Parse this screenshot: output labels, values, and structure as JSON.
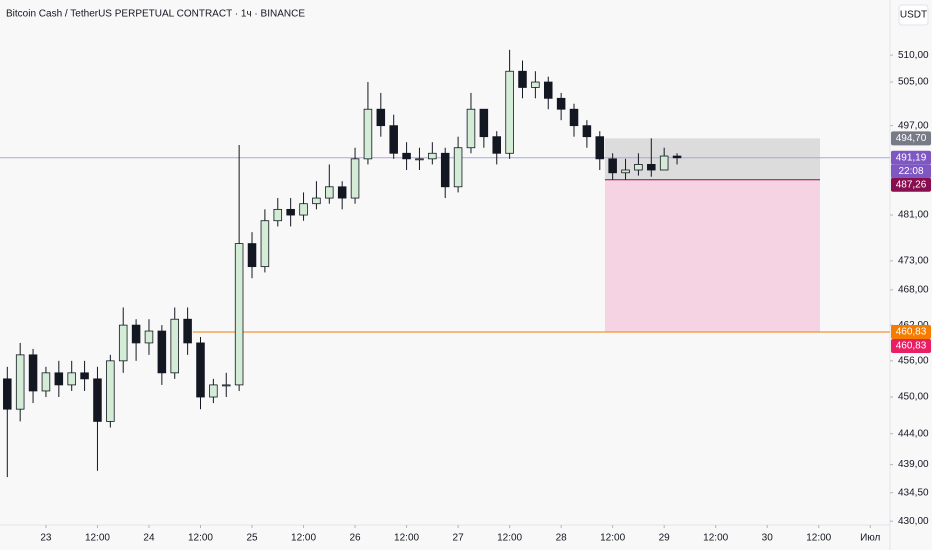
{
  "chart_data": {
    "type": "candlestick",
    "title": "Bitcoin Cash / TetherUS PERPETUAL CONTRACT · 1ч · BINANCE",
    "currency": "USDT",
    "up_color": "#d4ecd5",
    "down_color": "#131722",
    "log_scale": true,
    "x": [
      -9,
      -6,
      -3,
      0,
      3,
      6,
      9,
      12,
      15,
      18,
      21,
      24,
      27,
      30,
      33,
      36,
      39,
      42,
      45,
      48,
      51,
      54,
      57,
      60,
      63,
      66,
      69,
      72,
      75,
      78,
      81,
      84,
      87,
      90,
      93,
      96,
      99,
      102,
      105,
      108,
      111,
      114,
      117,
      120,
      123,
      126,
      129,
      132,
      135,
      138,
      141,
      144,
      147
    ],
    "open": [
      453,
      448,
      457,
      451,
      454,
      452,
      454,
      453,
      446,
      456,
      462,
      459,
      461,
      454,
      463,
      459,
      450,
      452,
      452,
      476,
      472,
      480,
      482,
      481,
      483,
      484,
      486,
      484,
      491,
      500,
      497,
      492,
      491,
      491,
      492,
      486,
      493,
      500,
      495,
      492,
      507,
      504,
      505,
      502,
      500,
      497,
      495,
      491,
      488.5,
      489,
      490,
      489,
      491.5
    ],
    "close": [
      448,
      457,
      451,
      454,
      452,
      454,
      453,
      446,
      456,
      462,
      459,
      461,
      454,
      463,
      459,
      450,
      452,
      452,
      476,
      472,
      480,
      482,
      481,
      483,
      484,
      486,
      484,
      491,
      500,
      497,
      492,
      491,
      491,
      492,
      486,
      493,
      500,
      495,
      492,
      507,
      504,
      505,
      502,
      500,
      497,
      495,
      491,
      488.5,
      489,
      490,
      489,
      491.5,
      491.19
    ],
    "high": [
      455,
      459,
      458,
      455,
      456,
      456,
      456,
      455,
      457,
      465,
      463,
      463,
      462,
      465,
      465,
      460,
      453,
      454,
      493.5,
      478,
      482,
      484,
      484,
      485,
      487,
      490,
      487,
      493,
      505,
      503,
      499,
      494,
      493,
      494,
      493,
      495,
      503,
      500,
      496,
      511,
      509,
      507,
      506,
      503,
      501,
      498,
      496,
      492,
      491,
      492,
      494.7,
      493,
      492
    ],
    "low": [
      437,
      446,
      449,
      450,
      450,
      451,
      451,
      438,
      445,
      454,
      456,
      457,
      452,
      453,
      457,
      448,
      449,
      450,
      451,
      470,
      471,
      479,
      479,
      480,
      482,
      483,
      482,
      483,
      490,
      495,
      491,
      489,
      489,
      490,
      484,
      485,
      492,
      493,
      490,
      491,
      502,
      502,
      500,
      498,
      495,
      493,
      489,
      487.3,
      487.3,
      488,
      487.8,
      489,
      490
    ],
    "ylim": [
      429.4,
      520.4
    ],
    "yticks": [
      {
        "value": 510,
        "label": "510,00"
      },
      {
        "value": 505,
        "label": "505,00"
      },
      {
        "value": 497,
        "label": "497,00"
      },
      {
        "value": 481,
        "label": "481,00"
      },
      {
        "value": 473,
        "label": "473,00"
      },
      {
        "value": 468,
        "label": "468,00"
      },
      {
        "value": 462,
        "label": "462,00"
      },
      {
        "value": 456,
        "label": "456,00"
      },
      {
        "value": 450,
        "label": "450,00"
      },
      {
        "value": 444,
        "label": "444,00"
      },
      {
        "value": 439,
        "label": "439,00"
      },
      {
        "value": 434.5,
        "label": "434,50"
      },
      {
        "value": 430,
        "label": "430,00"
      }
    ],
    "xlim": [
      -10.7,
      196.6
    ],
    "xticks": [
      {
        "value": 0,
        "label": "23"
      },
      {
        "value": 12,
        "label": "12:00"
      },
      {
        "value": 24,
        "label": "24"
      },
      {
        "value": 36,
        "label": "12:00"
      },
      {
        "value": 48,
        "label": "25"
      },
      {
        "value": 60,
        "label": "12:00"
      },
      {
        "value": 72,
        "label": "26"
      },
      {
        "value": 84,
        "label": "12:00"
      },
      {
        "value": 96,
        "label": "27"
      },
      {
        "value": 108,
        "label": "12:00"
      },
      {
        "value": 120,
        "label": "28"
      },
      {
        "value": 132,
        "label": "12:00"
      },
      {
        "value": 144,
        "label": "29"
      },
      {
        "value": 156,
        "label": "12:00"
      },
      {
        "value": 168,
        "label": "30"
      },
      {
        "value": 180,
        "label": "12:00"
      },
      {
        "value": 192,
        "label": "Июл"
      }
    ],
    "zones": [
      {
        "from": 494.7,
        "to": 487.26,
        "x_from": 130.2,
        "x_to": 180.3,
        "color": "#dcdcdc"
      },
      {
        "from": 487.26,
        "to": 460.83,
        "x_from": 130.2,
        "x_to": 180.3,
        "color": "#f6d3e2"
      }
    ],
    "lines": [
      {
        "value": 491.19,
        "color": "#a9a7e0",
        "x_from": -10.7
      },
      {
        "value": 460.83,
        "color": "#f57c00",
        "x_from": 34.2
      },
      {
        "value": 487.26,
        "color": "#880e4f",
        "x_from": 130.2,
        "x_to": 180.3
      }
    ],
    "levels": [
      {
        "value": 494.7,
        "label": "494,70",
        "color": "#787b86"
      },
      {
        "value": 491.19,
        "label": "491,19",
        "color": "#7e57c2"
      },
      {
        "value": 487.26,
        "label": "487,26",
        "color": "#880e4f"
      },
      {
        "value": 460.83,
        "label": "460,83",
        "color": "#f57c00"
      },
      {
        "value": 460.83,
        "label": "460,83",
        "color": "#e91e63"
      }
    ],
    "countdown": "22:08"
  }
}
